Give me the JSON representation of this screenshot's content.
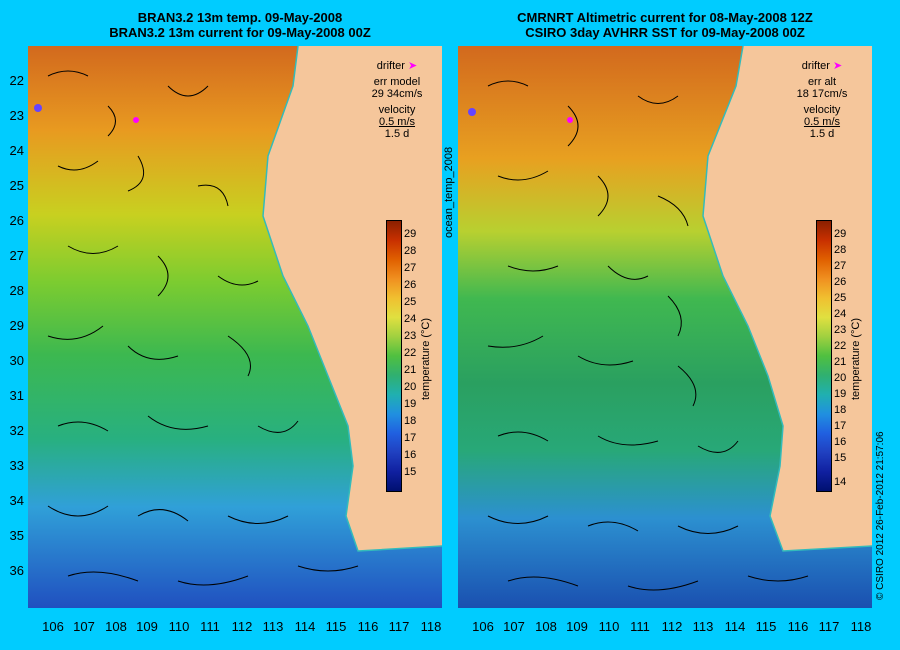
{
  "left": {
    "title_line1": "BRAN3.2 13m temp. 09-May-2008",
    "title_line2": "BRAN3.2 13m current for 09-May-2008 00Z",
    "legend": {
      "drifter": "drifter",
      "err_label": "err model",
      "err_value": "29 34cm/s",
      "velocity": "velocity",
      "vel_value": "0.5 m/s",
      "vel_time": "1.5 d"
    },
    "colorbar_ticks": [
      "29",
      "28",
      "27",
      "26",
      "25",
      "24",
      "23",
      "22",
      "21",
      "20",
      "19",
      "18",
      "17",
      "16",
      "15"
    ],
    "colorbar_title": "temperature (°C)"
  },
  "right": {
    "title_line1": "CMRNRT Altimetric current for 08-May-2008 12Z",
    "title_line2": "CSIRO 3day AVHRR SST for 09-May-2008 00Z",
    "legend": {
      "drifter": "drifter",
      "err_label": "err alt",
      "err_value": "18 17cm/s",
      "velocity": "velocity",
      "vel_value": "0.5 m/s",
      "vel_time": "1.5 d"
    },
    "colorbar_ticks": [
      "29",
      "28",
      "27",
      "26",
      "25",
      "24",
      "23",
      "22",
      "21",
      "20",
      "19",
      "18",
      "17",
      "16",
      "15",
      "14"
    ],
    "colorbar_title": "temperature (°C)"
  },
  "lat_ticks": [
    "22",
    "23",
    "24",
    "25",
    "26",
    "27",
    "28",
    "29",
    "30",
    "31",
    "32",
    "33",
    "34",
    "35",
    "36"
  ],
  "lon_ticks": [
    "106",
    "107",
    "108",
    "109",
    "110",
    "111",
    "112",
    "113",
    "114",
    "115",
    "116",
    "117",
    "118"
  ],
  "middle_label": "ocean_temp_2008",
  "credit": "© CSIRO 2012   26-Feb-2012 21:57:06",
  "colors": {
    "background": "#00ccff",
    "land": "#f5c69b",
    "drifter": "#ff00ff",
    "coast_line": "#33bbbb"
  }
}
